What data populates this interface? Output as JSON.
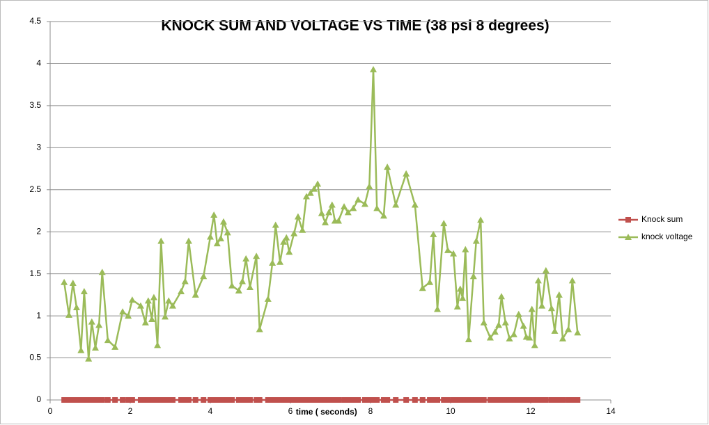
{
  "chart_data": {
    "type": "line",
    "title": "KNOCK SUM AND VOLTAGE VS TIME (38 psi 8 degrees)",
    "x_label": "time ( seconds)",
    "x": [
      0.35,
      0.47,
      0.57,
      0.66,
      0.77,
      0.85,
      0.96,
      1.04,
      1.13,
      1.22,
      1.3,
      1.44,
      1.62,
      1.81,
      1.95,
      2.05,
      2.26,
      2.38,
      2.45,
      2.54,
      2.59,
      2.68,
      2.77,
      2.87,
      2.96,
      3.06,
      3.27,
      3.37,
      3.46,
      3.63,
      3.83,
      4.0,
      4.09,
      4.17,
      4.26,
      4.33,
      4.43,
      4.54,
      4.71,
      4.8,
      4.89,
      4.99,
      5.15,
      5.23,
      5.44,
      5.55,
      5.63,
      5.74,
      5.83,
      5.9,
      5.97,
      6.09,
      6.19,
      6.3,
      6.4,
      6.5,
      6.59,
      6.68,
      6.78,
      6.87,
      6.96,
      7.04,
      7.11,
      7.2,
      7.34,
      7.44,
      7.57,
      7.69,
      7.86,
      7.97,
      8.07,
      8.16,
      8.33,
      8.42,
      8.63,
      8.89,
      9.11,
      9.3,
      9.48,
      9.57,
      9.67,
      9.83,
      9.93,
      10.07,
      10.17,
      10.24,
      10.3,
      10.37,
      10.45,
      10.57,
      10.64,
      10.75,
      10.83,
      10.99,
      11.11,
      11.2,
      11.27,
      11.37,
      11.47,
      11.58,
      11.7,
      11.82,
      11.89,
      11.97,
      12.03,
      12.1,
      12.19,
      12.28,
      12.38,
      12.52,
      12.6,
      12.71,
      12.8,
      12.94,
      13.04,
      13.17
    ],
    "series": [
      {
        "name": "Knock sum",
        "color": "#c0504d",
        "marker": "square",
        "values": [
          0,
          0,
          0,
          0,
          0,
          0,
          0,
          0,
          0,
          0,
          0,
          0,
          0,
          0,
          0,
          0,
          0,
          0,
          0,
          0,
          0,
          0,
          0,
          0,
          0,
          0,
          0,
          0,
          0,
          0,
          0,
          0,
          0,
          0,
          0,
          0,
          0,
          0,
          0,
          0,
          0,
          0,
          0,
          0,
          0,
          0,
          0,
          0,
          0,
          0,
          0,
          0,
          0,
          0,
          0,
          0,
          0,
          0,
          0,
          0,
          0,
          0,
          0,
          0,
          0,
          0,
          0,
          0,
          0,
          0,
          0,
          0,
          0,
          0,
          0,
          0,
          0,
          0,
          0,
          0,
          0,
          0,
          0,
          0,
          0,
          0,
          0,
          0,
          0,
          0,
          0,
          0,
          0,
          0,
          0,
          0,
          0,
          0,
          0,
          0,
          0,
          0,
          0,
          0,
          0,
          0,
          0,
          0,
          0,
          0,
          0,
          0,
          0,
          0,
          0,
          0
        ]
      },
      {
        "name": "knock voltage",
        "color": "#9bbb59",
        "marker": "triangle",
        "values": [
          1.4,
          1.01,
          1.39,
          1.1,
          0.59,
          1.29,
          0.49,
          0.93,
          0.62,
          0.89,
          1.52,
          0.71,
          0.63,
          1.05,
          1.0,
          1.19,
          1.12,
          0.92,
          1.18,
          0.96,
          1.22,
          0.65,
          1.89,
          0.99,
          1.18,
          1.12,
          1.29,
          1.41,
          1.89,
          1.25,
          1.47,
          1.94,
          2.2,
          1.86,
          1.92,
          2.12,
          1.99,
          1.36,
          1.3,
          1.41,
          1.68,
          1.34,
          1.71,
          0.84,
          1.2,
          1.63,
          2.08,
          1.64,
          1.88,
          1.93,
          1.76,
          1.98,
          2.18,
          2.02,
          2.42,
          2.46,
          2.51,
          2.57,
          2.22,
          2.11,
          2.23,
          2.32,
          2.13,
          2.13,
          2.3,
          2.23,
          2.28,
          2.38,
          2.33,
          2.54,
          3.93,
          2.28,
          2.19,
          2.77,
          2.32,
          2.69,
          2.32,
          1.33,
          1.4,
          1.97,
          1.08,
          2.1,
          1.78,
          1.74,
          1.11,
          1.32,
          1.21,
          1.79,
          0.72,
          1.47,
          1.89,
          2.14,
          0.92,
          0.74,
          0.81,
          0.89,
          1.23,
          0.92,
          0.73,
          0.78,
          1.02,
          0.88,
          0.75,
          0.74,
          1.08,
          0.65,
          1.42,
          1.12,
          1.54,
          1.09,
          0.82,
          1.25,
          0.73,
          0.84,
          1.42,
          0.8
        ]
      }
    ],
    "xlim": [
      0,
      14
    ],
    "xticks": [
      0,
      2,
      4,
      6,
      8,
      10,
      12,
      14
    ],
    "ylim": [
      0,
      4.5
    ],
    "yticks": [
      0,
      0.5,
      1,
      1.5,
      2,
      2.5,
      3,
      3.5,
      4,
      4.5
    ],
    "grid": true,
    "legend": "right"
  }
}
